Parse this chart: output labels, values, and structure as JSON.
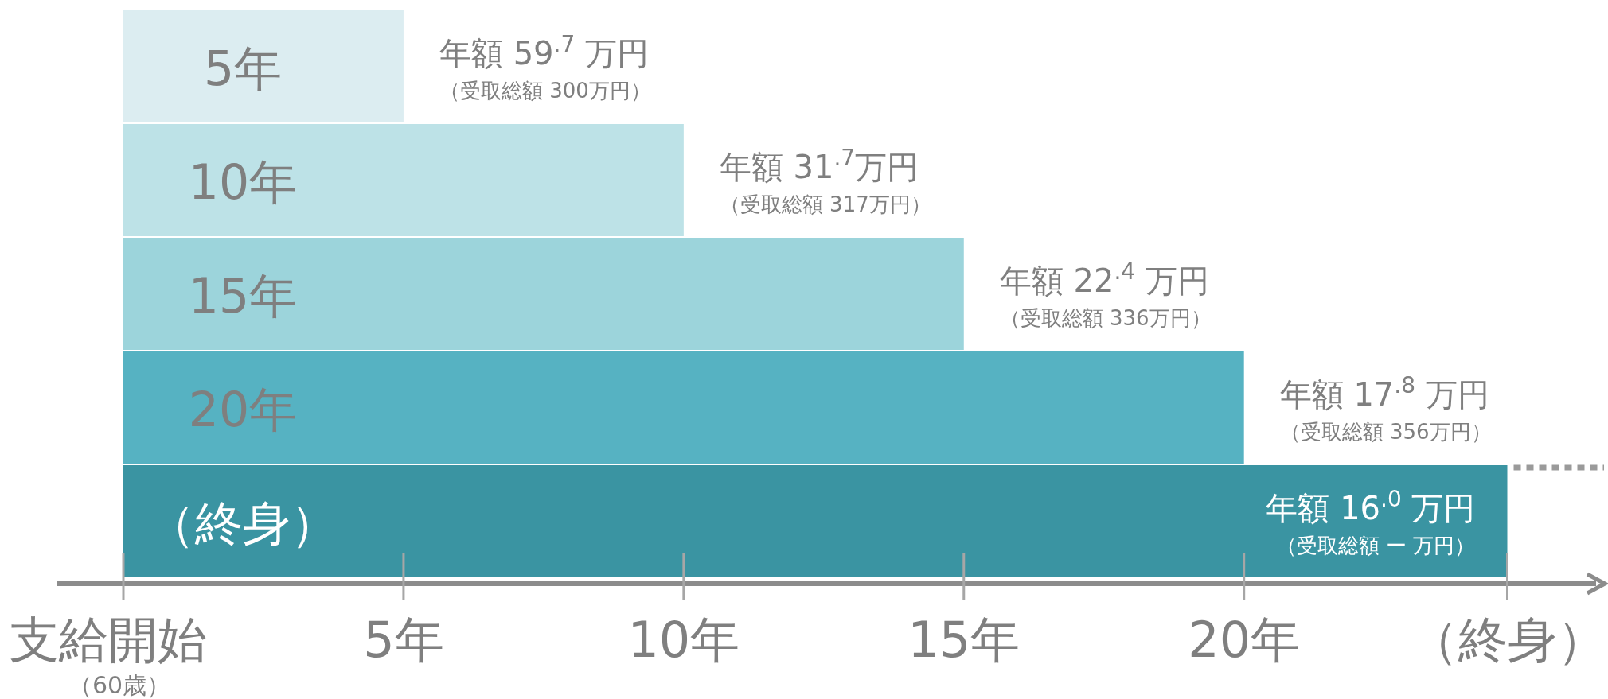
{
  "chart_data": {
    "type": "bar",
    "orientation": "horizontal",
    "categories": [
      "5年",
      "10年",
      "15年",
      "20年",
      "（終身）"
    ],
    "values": [
      5,
      10,
      15,
      20,
      24.7
    ],
    "colors": [
      "#dcedf1",
      "#bde2e7",
      "#9cd4db",
      "#56b2c2",
      "#3a94a2"
    ],
    "xlim": [
      0,
      26
    ],
    "xticks": [
      {
        "value": 0,
        "label": "支給開始"
      },
      {
        "value": 5,
        "label": "5年"
      },
      {
        "value": 10,
        "label": "10年"
      },
      {
        "value": 15,
        "label": "15年"
      },
      {
        "value": 20,
        "label": "20年"
      },
      {
        "value": 24.7,
        "label": "（終身）"
      }
    ],
    "value_labels": [
      "年額 59$^{.7}$ 万円",
      "年額 31$^{.7}$万円",
      "年額 22$^{.4}$ 万円",
      "年額 17$^{.8}$ 万円",
      "年額 16$^{.0}$ 万円"
    ],
    "annotations": [
      {
        "text": "（受取総額 300万円）",
        "x": 5,
        "y": "5年"
      },
      {
        "text": "（受取総額 317万円）",
        "x": 10,
        "y": "10年"
      },
      {
        "text": "（受取総額 336万円）",
        "x": 15,
        "y": "15年"
      },
      {
        "text": "（受取総額 356万円）",
        "x": 20,
        "y": "20年"
      },
      {
        "text": "（受取総額 ー 万円）",
        "x": 24.7,
        "y": "（終身）"
      },
      "（60歳）"
    ]
  }
}
